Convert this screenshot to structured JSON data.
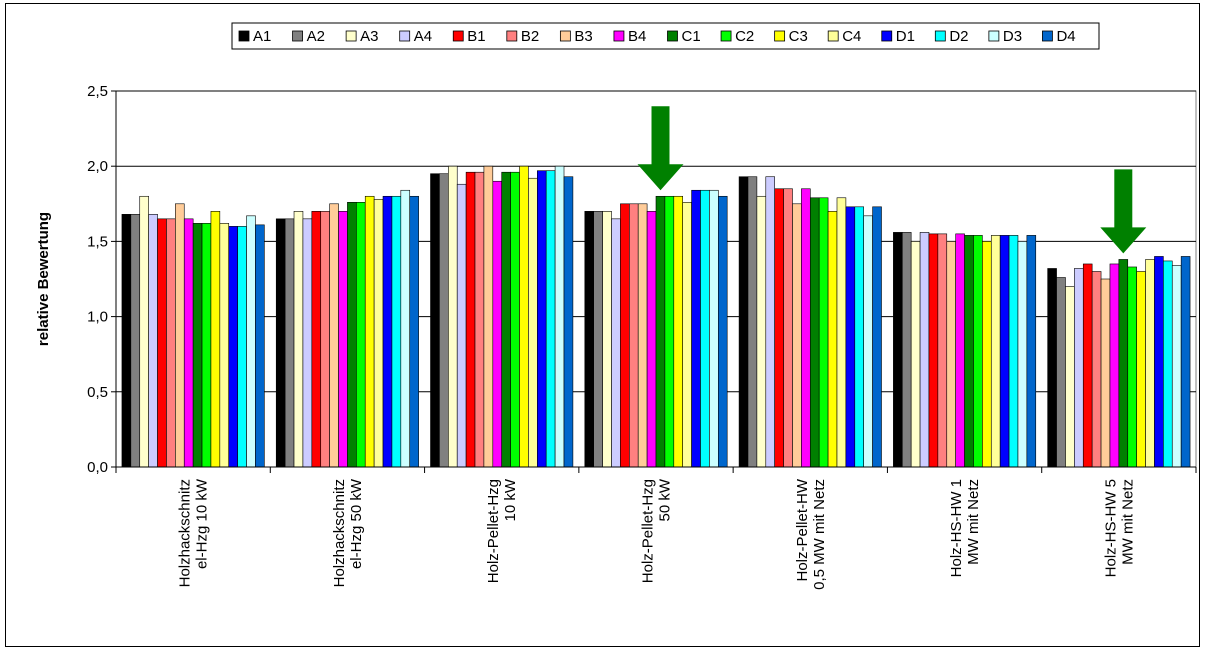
{
  "chart_data": {
    "type": "bar",
    "title": "",
    "xlabel": "",
    "ylabel": "relative Bewertung",
    "ylim": [
      0,
      2.5
    ],
    "yticks": [
      0.0,
      0.5,
      1.0,
      1.5,
      2.0,
      2.5
    ],
    "ytick_labels": [
      "0,0",
      "0,5",
      "1,0",
      "1,5",
      "2,0",
      "2,5"
    ],
    "grid": "horizontal",
    "legend_position": "top",
    "categories": [
      [
        "Holzhackschnitz",
        "el-Hzg 10 kW"
      ],
      [
        "Holzhackschnitz",
        "el-Hzg 50 kW"
      ],
      [
        "Holz-Pellet-Hzg",
        "10 kW"
      ],
      [
        "Holz-Pellet-Hzg",
        "50 kW"
      ],
      [
        "Holz-Pellet-HW",
        "0,5 MW mit Netz"
      ],
      [
        "Holz-HS-HW 1",
        "MW mit Netz"
      ],
      [
        "Holz-HS-HW 5",
        "MW mit Netz"
      ]
    ],
    "series": [
      {
        "name": "A1",
        "color": "#000000",
        "values": [
          1.68,
          1.65,
          1.95,
          1.7,
          1.93,
          1.56,
          1.32
        ]
      },
      {
        "name": "A2",
        "color": "#808080",
        "values": [
          1.68,
          1.65,
          1.95,
          1.7,
          1.93,
          1.56,
          1.26
        ]
      },
      {
        "name": "A3",
        "color": "#FFFFCC",
        "values": [
          1.8,
          1.7,
          2.0,
          1.7,
          1.8,
          1.5,
          1.2
        ]
      },
      {
        "name": "A4",
        "color": "#CCCCFF",
        "values": [
          1.68,
          1.65,
          1.88,
          1.65,
          1.93,
          1.56,
          1.32
        ]
      },
      {
        "name": "B1",
        "color": "#FF0000",
        "values": [
          1.65,
          1.7,
          1.96,
          1.75,
          1.85,
          1.55,
          1.35
        ]
      },
      {
        "name": "B2",
        "color": "#FF8080",
        "values": [
          1.65,
          1.7,
          1.96,
          1.75,
          1.85,
          1.55,
          1.3
        ]
      },
      {
        "name": "B3",
        "color": "#FFCC99",
        "values": [
          1.75,
          1.75,
          2.0,
          1.75,
          1.75,
          1.5,
          1.25
        ]
      },
      {
        "name": "B4",
        "color": "#FF00FF",
        "values": [
          1.65,
          1.7,
          1.9,
          1.7,
          1.85,
          1.55,
          1.35
        ]
      },
      {
        "name": "C1",
        "color": "#008000",
        "values": [
          1.62,
          1.76,
          1.96,
          1.8,
          1.79,
          1.54,
          1.38
        ]
      },
      {
        "name": "C2",
        "color": "#00FF00",
        "values": [
          1.62,
          1.76,
          1.96,
          1.8,
          1.79,
          1.54,
          1.33
        ]
      },
      {
        "name": "C3",
        "color": "#FFFF00",
        "values": [
          1.7,
          1.8,
          2.0,
          1.8,
          1.7,
          1.5,
          1.3
        ]
      },
      {
        "name": "C4",
        "color": "#FFFF99",
        "values": [
          1.62,
          1.78,
          1.92,
          1.76,
          1.79,
          1.54,
          1.38
        ]
      },
      {
        "name": "D1",
        "color": "#0000FF",
        "values": [
          1.6,
          1.8,
          1.97,
          1.84,
          1.73,
          1.54,
          1.4
        ]
      },
      {
        "name": "D2",
        "color": "#00FFFF",
        "values": [
          1.6,
          1.8,
          1.97,
          1.84,
          1.73,
          1.54,
          1.37
        ]
      },
      {
        "name": "D3",
        "color": "#CCFFFF",
        "values": [
          1.67,
          1.84,
          2.0,
          1.84,
          1.67,
          1.5,
          1.34
        ]
      },
      {
        "name": "D4",
        "color": "#0066CC",
        "values": [
          1.61,
          1.8,
          1.93,
          1.8,
          1.73,
          1.54,
          1.4
        ]
      }
    ],
    "annotations": [
      {
        "type": "arrow",
        "direction": "down",
        "color": "#008000",
        "category_index": 3,
        "series_name": "C1"
      },
      {
        "type": "arrow",
        "direction": "down",
        "color": "#008000",
        "category_index": 6,
        "series_name": "C1"
      }
    ]
  }
}
